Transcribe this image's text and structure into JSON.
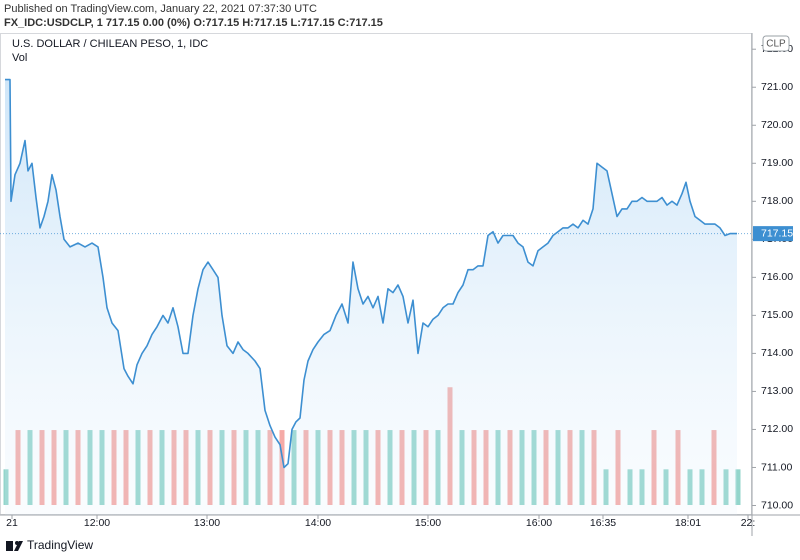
{
  "header": {
    "published": "Published on TradingView.com, January 22, 2021 07:37:30 UTC",
    "quote": "FX_IDC:USDCLP, 1  717.15  0.00 (0%)  O:717.15  H:717.15  L:717.15  C:717.15"
  },
  "footer": {
    "brand": "TradingView"
  },
  "chart_data": {
    "type": "line",
    "title": "U.S. DOLLAR / CHILEAN PESO, 1, IDC",
    "currency": "CLP",
    "color": "#3d8fd1",
    "last_price": 717.15,
    "xlim": [
      0,
      752
    ],
    "ylim": [
      709.75,
      722.4
    ],
    "yticks": [
      {
        "value": 710,
        "label": "710.00"
      },
      {
        "value": 711,
        "label": "711.00"
      },
      {
        "value": 712,
        "label": "712.00"
      },
      {
        "value": 713,
        "label": "713.00"
      },
      {
        "value": 714,
        "label": "714.00"
      },
      {
        "value": 715,
        "label": "715.00"
      },
      {
        "value": 716,
        "label": "716.00"
      },
      {
        "value": 717,
        "label": "717.00"
      },
      {
        "value": 718,
        "label": "718.00"
      },
      {
        "value": 719,
        "label": "719.00"
      },
      {
        "value": 720,
        "label": "720.00"
      },
      {
        "value": 721,
        "label": "721.00"
      },
      {
        "value": 722,
        "label": "722.00"
      }
    ],
    "xticks": [
      {
        "value": 12,
        "label": "21"
      },
      {
        "value": 97,
        "label": "12:00"
      },
      {
        "value": 207,
        "label": "13:00"
      },
      {
        "value": 318,
        "label": "14:00"
      },
      {
        "value": 428,
        "label": "15:00"
      },
      {
        "value": 539,
        "label": "16:00"
      },
      {
        "value": 603,
        "label": "16:35"
      },
      {
        "value": 688,
        "label": "18:01"
      },
      {
        "value": 748,
        "label": "22:"
      }
    ],
    "x": [
      5,
      10,
      11,
      15,
      20,
      25,
      28,
      32,
      36,
      40,
      44,
      48,
      52,
      56,
      60,
      64,
      70,
      78,
      85,
      92,
      98,
      103,
      107,
      112,
      118,
      124,
      128,
      133,
      137,
      142,
      147,
      152,
      157,
      163,
      168,
      173,
      178,
      183,
      188,
      193,
      198,
      203,
      208,
      213,
      218,
      222,
      227,
      233,
      238,
      243,
      248,
      255,
      260,
      265,
      270,
      275,
      280,
      284,
      288,
      292,
      296,
      300,
      304,
      308,
      313,
      318,
      324,
      330,
      336,
      342,
      348,
      353,
      358,
      363,
      368,
      373,
      378,
      383,
      388,
      393,
      398,
      403,
      408,
      413,
      418,
      423,
      428,
      433,
      438,
      443,
      448,
      453,
      458,
      463,
      468,
      473,
      478,
      483,
      488,
      493,
      498,
      503,
      508,
      513,
      518,
      523,
      528,
      533,
      538,
      543,
      548,
      553,
      558,
      563,
      568,
      573,
      578,
      583,
      588,
      593,
      597,
      602,
      607,
      612,
      617,
      622,
      627,
      632,
      637,
      642,
      647,
      652,
      657,
      662,
      667,
      672,
      677,
      682,
      686,
      690,
      695,
      700,
      705,
      710,
      715,
      720,
      725,
      730,
      737
    ],
    "values": [
      721.2,
      721.2,
      718.0,
      718.7,
      719.0,
      719.6,
      718.8,
      719.0,
      718.1,
      717.3,
      717.6,
      718.0,
      718.7,
      718.3,
      717.6,
      717.0,
      716.8,
      716.9,
      716.8,
      716.9,
      716.8,
      716.0,
      715.2,
      714.8,
      714.6,
      713.6,
      713.4,
      713.2,
      713.7,
      714.0,
      714.2,
      714.5,
      714.7,
      715.0,
      714.8,
      715.2,
      714.7,
      714.0,
      714.0,
      715.0,
      715.7,
      716.2,
      716.4,
      716.2,
      716.0,
      715.0,
      714.2,
      714.0,
      714.3,
      714.1,
      714.0,
      713.8,
      713.6,
      712.5,
      712.1,
      711.8,
      711.6,
      711.0,
      711.1,
      712.0,
      712.2,
      712.3,
      713.3,
      713.8,
      714.1,
      714.3,
      714.5,
      714.6,
      715.0,
      715.3,
      714.8,
      716.4,
      715.7,
      715.3,
      715.5,
      715.2,
      715.5,
      714.8,
      715.7,
      715.6,
      715.8,
      715.5,
      714.8,
      715.4,
      714.0,
      714.8,
      714.7,
      714.9,
      715.0,
      715.2,
      715.3,
      715.3,
      715.6,
      715.8,
      716.2,
      716.2,
      716.3,
      716.3,
      717.1,
      717.2,
      716.9,
      717.1,
      717.1,
      717.1,
      716.9,
      716.8,
      716.4,
      716.3,
      716.7,
      716.8,
      716.9,
      717.1,
      717.2,
      717.3,
      717.3,
      717.4,
      717.3,
      717.5,
      717.4,
      717.8,
      719.0,
      718.9,
      718.8,
      718.2,
      717.6,
      717.8,
      717.8,
      718.0,
      718.0,
      718.1,
      718.0,
      718.0,
      718.0,
      718.1,
      717.9,
      718.0,
      717.9,
      718.2,
      718.5,
      718.0,
      717.6,
      717.5,
      717.4,
      717.4,
      717.4,
      717.3,
      717.1,
      717.15,
      717.15
    ],
    "volume": {
      "name": "Vol",
      "up_color": "#93d5cb",
      "down_color": "#f5aaa6",
      "ylim": [
        0,
        13.2
      ],
      "x": [
        6,
        18,
        30,
        42,
        54,
        66,
        78,
        90,
        102,
        114,
        126,
        138,
        150,
        162,
        174,
        186,
        198,
        210,
        222,
        234,
        246,
        258,
        270,
        282,
        294,
        306,
        318,
        330,
        342,
        354,
        366,
        378,
        390,
        402,
        414,
        426,
        438,
        450,
        462,
        474,
        486,
        498,
        510,
        522,
        534,
        546,
        558,
        570,
        582,
        594,
        606,
        618,
        630,
        642,
        654,
        666,
        678,
        690,
        702,
        714,
        726,
        738
      ],
      "values": [
        1,
        2.1,
        2.1,
        2.1,
        2.1,
        2.1,
        2.1,
        2.1,
        2.1,
        2.1,
        2.1,
        2.1,
        2.1,
        2.1,
        2.1,
        2.1,
        2.1,
        2.1,
        2.1,
        2.1,
        2.1,
        2.1,
        2.1,
        2.1,
        2.1,
        2.1,
        2.1,
        2.1,
        2.1,
        2.1,
        2.1,
        2.1,
        2.1,
        2.1,
        2.1,
        2.1,
        2.1,
        3.3,
        2.1,
        2.1,
        2.1,
        2.1,
        2.1,
        2.1,
        2.1,
        2.1,
        2.1,
        2.1,
        2.1,
        2.1,
        1,
        2.1,
        1,
        1,
        2.1,
        1,
        2.1,
        1,
        1,
        2.1,
        1,
        1
      ],
      "falling": [
        false,
        true,
        false,
        true,
        true,
        false,
        true,
        false,
        false,
        true,
        true,
        false,
        true,
        false,
        true,
        true,
        false,
        true,
        false,
        true,
        false,
        false,
        true,
        true,
        false,
        true,
        false,
        true,
        true,
        false,
        false,
        true,
        false,
        true,
        false,
        true,
        false,
        true,
        false,
        true,
        true,
        false,
        true,
        false,
        false,
        true,
        false,
        true,
        false,
        true,
        false,
        true,
        false,
        false,
        true,
        false,
        true,
        false,
        false,
        true,
        false,
        false
      ]
    }
  }
}
